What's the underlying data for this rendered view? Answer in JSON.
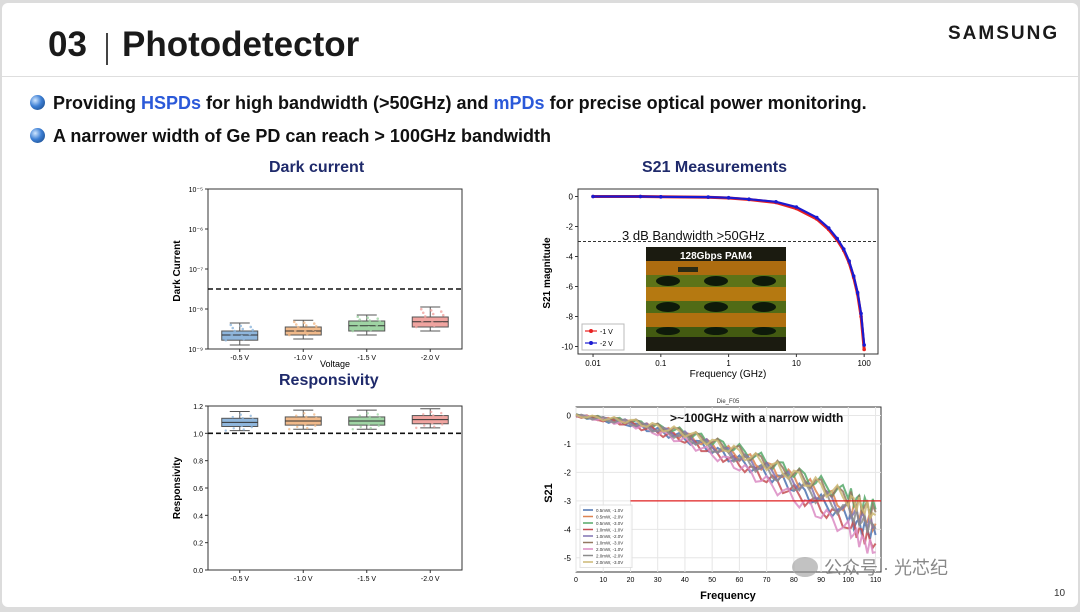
{
  "slide": {
    "number": "03",
    "title": "Photodetector",
    "brand": "SAMSUNG",
    "page": "10",
    "bullets": {
      "b1_a": "Providing ",
      "b1_hl1": "HSPDs",
      "b1_b": " for high bandwidth (>50GHz) and ",
      "b1_hl2": "mPDs",
      "b1_c": " for precise optical power monitoring.",
      "b2": "A narrower width of Ge PD can reach > 100GHz bandwidth"
    },
    "watermark": "公众号 · 光芯纪",
    "colors": {
      "highlight": "#2b59d9",
      "caption": "#1f2a6b"
    }
  },
  "chart_data": [
    {
      "type": "box",
      "caption": "Dark current",
      "xlabel": "Voltage",
      "ylabel": "Dark Current",
      "yscale": "log",
      "y_ticks": [
        "10⁻⁵",
        "10⁻⁶",
        "10⁻⁷",
        "10⁻⁸",
        "10⁻⁹"
      ],
      "categories": [
        "-0.5 V",
        "-1.0 V",
        "-1.5 V",
        "-2.0 V"
      ],
      "box_colors": [
        "#8fb6dc",
        "#f0b98a",
        "#9fd4a4",
        "#f0a4a0"
      ],
      "medians_log10": [
        -8.65,
        -8.55,
        -8.42,
        -8.32
      ],
      "q1_log10": [
        -8.78,
        -8.65,
        -8.55,
        -8.45
      ],
      "q3_log10": [
        -8.55,
        -8.45,
        -8.3,
        -8.2
      ],
      "whisker_low_log10": [
        -8.9,
        -8.75,
        -8.65,
        -8.55
      ],
      "whisker_high_log10": [
        -8.35,
        -8.28,
        -8.15,
        -7.95
      ],
      "threshold_log10": -7.5
    },
    {
      "type": "box",
      "caption": "Responsivity",
      "xlabel": "Voltage",
      "ylabel": "Responsivity",
      "ylim": [
        0.0,
        1.2
      ],
      "y_ticks": [
        "1.2",
        "1.0",
        "0.8",
        "0.6",
        "0.4",
        "0.2",
        "0.0"
      ],
      "categories": [
        "-0.5 V",
        "-1.0 V",
        "-1.5 V",
        "-2.0 V"
      ],
      "box_colors": [
        "#8fb6dc",
        "#f0b98a",
        "#9fd4a4",
        "#f0a4a0"
      ],
      "medians": [
        1.08,
        1.09,
        1.09,
        1.1
      ],
      "q1": [
        1.05,
        1.06,
        1.06,
        1.07
      ],
      "q3": [
        1.11,
        1.12,
        1.12,
        1.13
      ],
      "whisker_low": [
        1.02,
        1.03,
        1.03,
        1.04
      ],
      "whisker_high": [
        1.16,
        1.17,
        1.17,
        1.18
      ],
      "threshold": 1.0
    },
    {
      "type": "line",
      "caption": "S21 Measurements",
      "xlabel": "Frequency (GHz)",
      "ylabel": "S21 magnitude",
      "xscale": "log",
      "x_ticks": [
        "0.01",
        "0.1",
        "1",
        "10",
        "100"
      ],
      "y_ticks": [
        "0",
        "-2",
        "-4",
        "-6",
        "-8",
        "-10"
      ],
      "ylim": [
        -10.5,
        0.5
      ],
      "annotation": "3 dB Bandwidth >50GHz",
      "threshold": -3,
      "inset_label": "128Gbps PAM4",
      "series": [
        {
          "name": "-1 V",
          "color": "#e82020",
          "x": [
            0.01,
            0.05,
            0.1,
            0.5,
            1,
            2,
            5,
            10,
            20,
            30,
            40,
            50,
            60,
            70,
            80,
            90,
            100
          ],
          "y": [
            0,
            0,
            -0.02,
            -0.05,
            -0.1,
            -0.2,
            -0.4,
            -0.8,
            -1.5,
            -2.2,
            -2.9,
            -3.6,
            -4.4,
            -5.4,
            -6.5,
            -8,
            -10.2
          ]
        },
        {
          "name": "-2 V",
          "color": "#1a1ad0",
          "x": [
            0.01,
            0.05,
            0.1,
            0.5,
            1,
            2,
            5,
            10,
            20,
            30,
            40,
            50,
            60,
            70,
            80,
            90,
            100
          ],
          "y": [
            0,
            0,
            -0.02,
            -0.04,
            -0.08,
            -0.18,
            -0.35,
            -0.7,
            -1.4,
            -2.1,
            -2.8,
            -3.5,
            -4.3,
            -5.3,
            -6.4,
            -7.8,
            -9.9
          ]
        }
      ]
    },
    {
      "type": "line",
      "subtitle": "Die_F05",
      "annotation": ">~100GHz with a narrow width",
      "xlabel": "Frequency",
      "ylabel": "S21",
      "x_ticks": [
        "0",
        "10",
        "20",
        "30",
        "40",
        "50",
        "60",
        "70",
        "80",
        "90",
        "100",
        "110"
      ],
      "y_ticks": [
        "0",
        "-1",
        "-2",
        "-3",
        "-4",
        "-5"
      ],
      "xlim": [
        0,
        112
      ],
      "ylim": [
        -5.5,
        0.3
      ],
      "threshold": -3,
      "series": [
        {
          "name": "0.5mW, -1.0V",
          "color": "#4c72b0",
          "x": [
            0,
            20,
            40,
            60,
            80,
            100,
            110
          ],
          "y": [
            0,
            -0.3,
            -0.8,
            -1.6,
            -2.5,
            -3.6,
            -4.2
          ]
        },
        {
          "name": "0.5mW, -2.0V",
          "color": "#dd8452",
          "x": [
            0,
            20,
            40,
            60,
            80,
            100,
            110
          ],
          "y": [
            0,
            -0.25,
            -0.7,
            -1.4,
            -2.2,
            -3.2,
            -3.8
          ]
        },
        {
          "name": "0.5mW, -3.0V",
          "color": "#55a868",
          "x": [
            0,
            20,
            40,
            60,
            80,
            100,
            110
          ],
          "y": [
            0,
            -0.2,
            -0.6,
            -1.2,
            -2.0,
            -2.8,
            -3.3
          ]
        },
        {
          "name": "1.0mW, -1.0V",
          "color": "#c44e52",
          "x": [
            0,
            20,
            40,
            60,
            80,
            100,
            110
          ],
          "y": [
            0,
            -0.3,
            -0.85,
            -1.7,
            -2.7,
            -3.8,
            -4.5
          ]
        },
        {
          "name": "1.0mW, -2.0V",
          "color": "#8172b3",
          "x": [
            0,
            20,
            40,
            60,
            80,
            100,
            110
          ],
          "y": [
            0,
            -0.25,
            -0.7,
            -1.45,
            -2.3,
            -3.3,
            -3.9
          ]
        },
        {
          "name": "1.0mW, -3.0V",
          "color": "#937860",
          "x": [
            0,
            20,
            40,
            60,
            80,
            100,
            110
          ],
          "y": [
            0,
            -0.2,
            -0.6,
            -1.25,
            -2.05,
            -2.9,
            -3.4
          ]
        },
        {
          "name": "2.0mW, -1.0V",
          "color": "#da8bc3",
          "x": [
            0,
            20,
            40,
            60,
            80,
            100,
            110
          ],
          "y": [
            0,
            -0.3,
            -0.9,
            -1.8,
            -2.9,
            -4.0,
            -4.8
          ]
        },
        {
          "name": "2.0mW, -2.0V",
          "color": "#8c8c8c",
          "x": [
            0,
            20,
            40,
            60,
            80,
            100,
            110
          ],
          "y": [
            0,
            -0.25,
            -0.75,
            -1.5,
            -2.4,
            -3.4,
            -4.0
          ]
        },
        {
          "name": "2.0mW, -3.0V",
          "color": "#ccb974",
          "x": [
            0,
            20,
            40,
            60,
            80,
            100,
            110
          ],
          "y": [
            0,
            -0.2,
            -0.6,
            -1.3,
            -2.1,
            -2.9,
            -3.5
          ]
        }
      ]
    }
  ]
}
